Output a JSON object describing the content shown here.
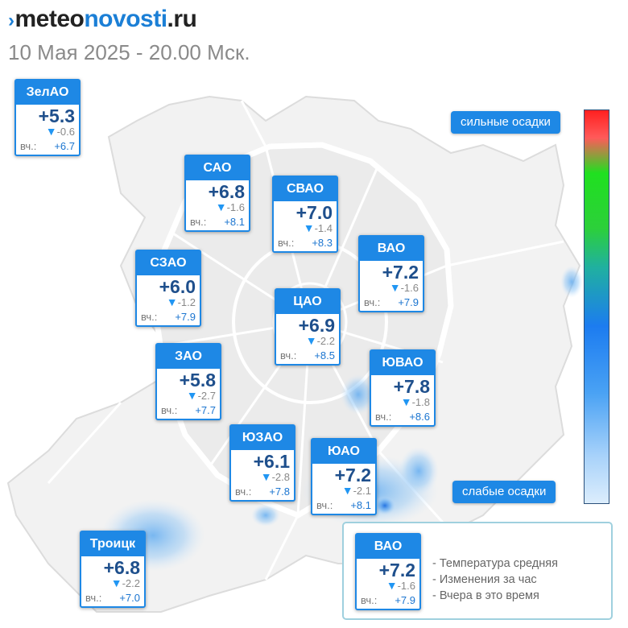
{
  "site": {
    "mark": "›",
    "part1": "meteo",
    "part2": "novosti",
    "part3": ".ru"
  },
  "datetime": "10 Мая 2025 - 20.00 Мск.",
  "districts": [
    {
      "name": "ЗелАО",
      "temp": "+5.3",
      "change": "-0.6",
      "yesterday_label": "вч.:",
      "yesterday": "+6.7"
    },
    {
      "name": "САО",
      "temp": "+6.8",
      "change": "-1.6",
      "yesterday_label": "вч.:",
      "yesterday": "+8.1"
    },
    {
      "name": "СВАО",
      "temp": "+7.0",
      "change": "-1.4",
      "yesterday_label": "вч.:",
      "yesterday": "+8.3"
    },
    {
      "name": "ВАО",
      "temp": "+7.2",
      "change": "-1.6",
      "yesterday_label": "вч.:",
      "yesterday": "+7.9"
    },
    {
      "name": "СЗАО",
      "temp": "+6.0",
      "change": "-1.2",
      "yesterday_label": "вч.:",
      "yesterday": "+7.9"
    },
    {
      "name": "ЦАО",
      "temp": "+6.9",
      "change": "-2.2",
      "yesterday_label": "вч.:",
      "yesterday": "+8.5"
    },
    {
      "name": "ЗАО",
      "temp": "+5.8",
      "change": "-2.7",
      "yesterday_label": "вч.:",
      "yesterday": "+7.7"
    },
    {
      "name": "ЮВАО",
      "temp": "+7.8",
      "change": "-1.8",
      "yesterday_label": "вч.:",
      "yesterday": "+8.6"
    },
    {
      "name": "ЮЗАО",
      "temp": "+6.1",
      "change": "-2.8",
      "yesterday_label": "вч.:",
      "yesterday": "+7.8"
    },
    {
      "name": "ЮАО",
      "temp": "+7.2",
      "change": "-2.1",
      "yesterday_label": "вч.:",
      "yesterday": "+8.1"
    },
    {
      "name": "Троицк",
      "temp": "+6.8",
      "change": "-2.2",
      "yesterday_label": "вч.:",
      "yesterday": "+7.0"
    }
  ],
  "change_arrow": "▼",
  "scale": {
    "strong_label": "сильные осадки",
    "weak_label": "слабые осадки"
  },
  "legend": {
    "example": {
      "name": "ВАО",
      "temp": "+7.2",
      "change": "-1.6",
      "yesterday_label": "вч.:",
      "yesterday": "+7.9"
    },
    "line1": "- Температура средняя",
    "line2": "- Изменения за час",
    "line3": "- Вчера в это время"
  },
  "colors": {
    "accent": "#1e88e5",
    "temperature": "#1e4f8c",
    "scale_top": "#ff2020",
    "scale_bottom": "#dcedfc"
  }
}
